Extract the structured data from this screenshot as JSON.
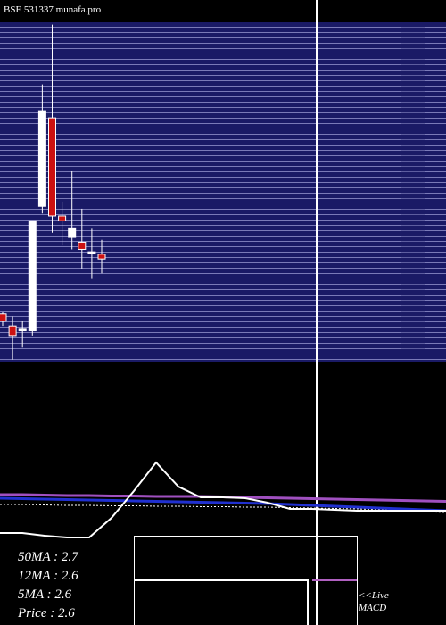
{
  "chart_data": [
    {
      "type": "candlestick",
      "title": "BSE 531337 munafa.pro",
      "annotations": [
        "50MA : 2.7",
        "12MA : 2.6",
        "5MA : 2.6",
        "Price  : 2.6"
      ],
      "categories": [
        null,
        null,
        null,
        null,
        null,
        null,
        null,
        null,
        null,
        null,
        null
      ],
      "open": [
        2.38,
        2.33,
        2.31,
        2.31,
        2.83,
        3.2,
        2.79,
        2.7,
        2.68,
        2.64,
        2.63
      ],
      "close": [
        2.35,
        2.29,
        2.32,
        2.77,
        3.23,
        2.79,
        2.77,
        2.74,
        2.65,
        2.64,
        2.61
      ],
      "high": [
        2.39,
        2.37,
        2.35,
        2.77,
        3.34,
        3.59,
        2.85,
        2.98,
        2.82,
        2.74,
        2.69
      ],
      "low": [
        2.33,
        2.19,
        2.24,
        2.29,
        2.8,
        2.72,
        2.67,
        2.65,
        2.57,
        2.53,
        2.55
      ],
      "up_color": "#ffffff",
      "down_color": "#cc1111",
      "ylim": [
        2.2,
        3.6
      ]
    },
    {
      "type": "line",
      "annotations": [
        "<<Live",
        "MACD"
      ],
      "categories": [
        null,
        null,
        null,
        null,
        null,
        null,
        null,
        null,
        null,
        null,
        null,
        null,
        null,
        null,
        null,
        null,
        null,
        null,
        null,
        null,
        null
      ],
      "series": [
        {
          "color": "#a050c0",
          "dash": false,
          "width": 3,
          "values": [
            55,
            55,
            54.6,
            54.2,
            54.2,
            53.8,
            53.8,
            53.3,
            53.3,
            53.3,
            52.9,
            52.5,
            52.1,
            51.7,
            51.3,
            50.8,
            50.4,
            50,
            49.6,
            49.2,
            48.8
          ]
        },
        {
          "color": "#2030d0",
          "dash": false,
          "width": 3,
          "values": [
            51.7,
            51.3,
            50.8,
            50.4,
            50,
            49.6,
            49.2,
            48.8,
            48.3,
            47.9,
            47.5,
            47.1,
            46.7,
            45.8,
            45,
            44.2,
            43.3,
            42.5,
            41.7,
            40.8,
            40
          ]
        },
        {
          "color": "#ffffff",
          "dash": true,
          "width": 1,
          "values": [
            45.8,
            45.8,
            45.4,
            45,
            45,
            44.6,
            44.6,
            44.2,
            44.2,
            43.8,
            43.8,
            43.3,
            43.3,
            42.9,
            42.5,
            42.1,
            41.7,
            40.8,
            40,
            39.2,
            38.3
          ]
        },
        {
          "color": "#ffffff",
          "dash": false,
          "width": 2,
          "values": [
            19.2,
            19.2,
            16.7,
            15,
            15,
            33.3,
            58.3,
            85,
            62.5,
            52.5,
            52.5,
            51.7,
            47.5,
            41.7,
            41.7,
            40.8,
            40,
            40,
            40,
            40,
            40
          ]
        }
      ],
      "ylim": [
        0,
        100
      ]
    }
  ]
}
